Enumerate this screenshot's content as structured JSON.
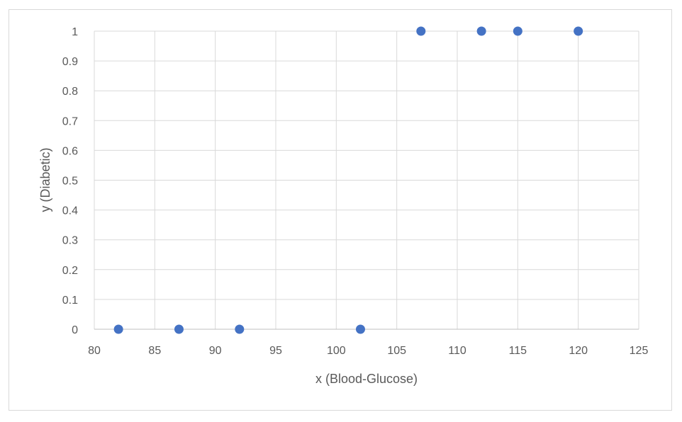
{
  "chart_data": {
    "type": "scatter",
    "xlabel": "x (Blood-Glucose)",
    "ylabel": "y (Diabetic)",
    "xlim": [
      80,
      125
    ],
    "ylim": [
      0,
      1
    ],
    "x_ticks": [
      "80",
      "85",
      "90",
      "95",
      "100",
      "105",
      "110",
      "115",
      "120",
      "125"
    ],
    "y_ticks": [
      "0",
      "0.1",
      "0.2",
      "0.3",
      "0.4",
      "0.5",
      "0.6",
      "0.7",
      "0.8",
      "0.9",
      "1"
    ],
    "grid": true,
    "legend": "none",
    "series": [
      {
        "color": "#4472c4",
        "points": [
          {
            "x": 82,
            "y": 0
          },
          {
            "x": 87,
            "y": 0
          },
          {
            "x": 92,
            "y": 0
          },
          {
            "x": 102,
            "y": 0
          },
          {
            "x": 107,
            "y": 1
          },
          {
            "x": 112,
            "y": 1
          },
          {
            "x": 115,
            "y": 1
          },
          {
            "x": 120,
            "y": 1
          }
        ]
      }
    ]
  }
}
